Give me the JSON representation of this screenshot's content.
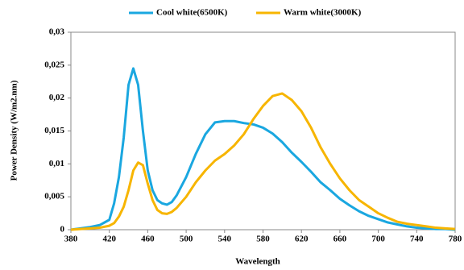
{
  "chart_data": {
    "type": "line",
    "ylabel": "Power Density (W/m2.nm)",
    "xlabel": "Wavelength",
    "x": [
      380,
      390,
      400,
      410,
      420,
      425,
      430,
      435,
      440,
      445,
      450,
      455,
      460,
      465,
      470,
      475,
      480,
      485,
      490,
      500,
      510,
      520,
      530,
      540,
      550,
      560,
      570,
      580,
      590,
      600,
      610,
      620,
      630,
      640,
      650,
      660,
      670,
      680,
      690,
      700,
      710,
      720,
      730,
      740,
      750,
      760,
      770,
      780
    ],
    "series": [
      {
        "name": "Cool white(6500K)",
        "color": "#1aa7e0",
        "values": [
          0,
          0.0002,
          0.0004,
          0.0007,
          0.0015,
          0.004,
          0.008,
          0.014,
          0.022,
          0.0245,
          0.022,
          0.015,
          0.009,
          0.006,
          0.0045,
          0.004,
          0.0038,
          0.0042,
          0.0052,
          0.008,
          0.0115,
          0.0145,
          0.0163,
          0.0165,
          0.0165,
          0.0162,
          0.016,
          0.0155,
          0.0146,
          0.0133,
          0.0117,
          0.0103,
          0.0088,
          0.0072,
          0.006,
          0.0047,
          0.0037,
          0.0028,
          0.0021,
          0.0016,
          0.0011,
          0.0008,
          0.0005,
          0.0003,
          0.0002,
          0.0001,
          0.0001,
          0
        ]
      },
      {
        "name": "Warm white(3000K)",
        "color": "#f7b500",
        "values": [
          0,
          0.0001,
          0.0002,
          0.0003,
          0.0006,
          0.001,
          0.002,
          0.0035,
          0.006,
          0.009,
          0.0102,
          0.0098,
          0.007,
          0.0045,
          0.003,
          0.0025,
          0.0024,
          0.0027,
          0.0033,
          0.005,
          0.0072,
          0.009,
          0.0105,
          0.0115,
          0.0128,
          0.0145,
          0.0168,
          0.0188,
          0.0203,
          0.0207,
          0.0197,
          0.018,
          0.0155,
          0.0125,
          0.01,
          0.0078,
          0.006,
          0.0045,
          0.0035,
          0.0025,
          0.0018,
          0.0012,
          0.0009,
          0.0007,
          0.0005,
          0.0003,
          0.0002,
          0.0001
        ]
      }
    ],
    "xlim": [
      380,
      780
    ],
    "xticks": [
      380,
      420,
      460,
      500,
      540,
      580,
      620,
      660,
      700,
      740,
      780
    ],
    "ylim": [
      0,
      0.03
    ],
    "yticks": [
      0,
      {
        "value": 0.005,
        "label": "0,005"
      },
      {
        "value": 0.01,
        "label": "0,01"
      },
      {
        "value": 0.015,
        "label": "0,015"
      },
      {
        "value": 0.02,
        "label": "0,02"
      },
      {
        "value": 0.025,
        "label": "0,025"
      },
      {
        "value": 0.03,
        "label": "0,03"
      }
    ],
    "legend": "top"
  }
}
